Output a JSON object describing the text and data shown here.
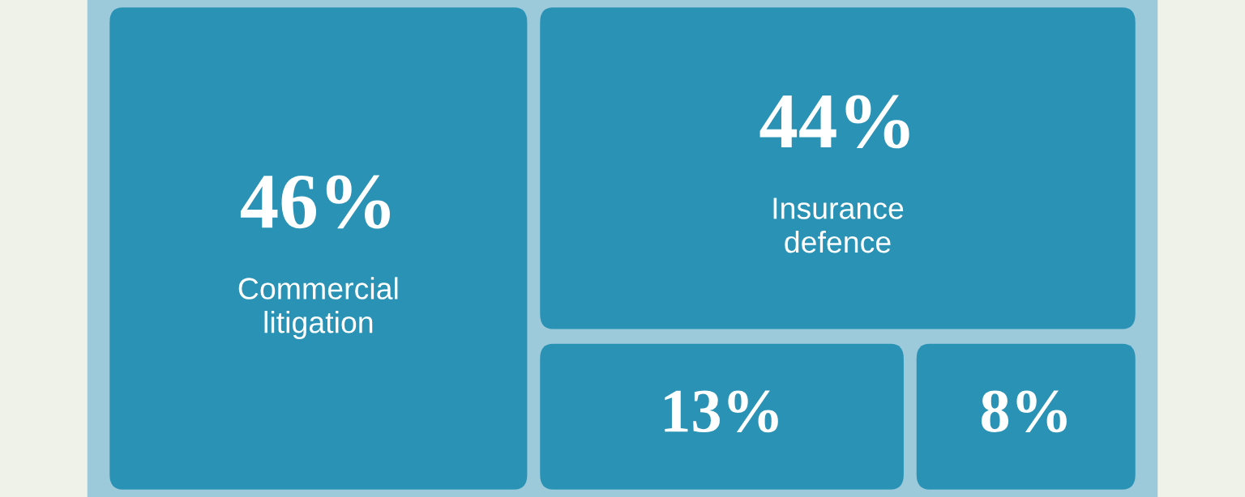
{
  "chart_data": {
    "type": "other",
    "categories": [
      "Commercial\nlitigation",
      "Insurance\ndefence",
      null,
      null
    ],
    "values": [
      46,
      44,
      13,
      8
    ],
    "value_labels": [
      "46%",
      "44%",
      "13%",
      "8%"
    ],
    "color": "#2a93b5"
  }
}
